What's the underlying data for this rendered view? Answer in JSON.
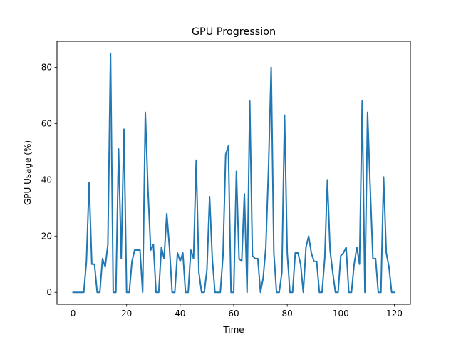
{
  "chart_data": {
    "type": "line",
    "title": "GPU Progression",
    "xlabel": "Time",
    "ylabel": "GPU Usage (%)",
    "xlim": [
      -6,
      126
    ],
    "ylim": [
      -4.25,
      89.25
    ],
    "xticks": [
      0,
      20,
      40,
      60,
      80,
      100,
      120
    ],
    "yticks": [
      0,
      20,
      40,
      60,
      80
    ],
    "grid": false,
    "line_color": "#1f77b4",
    "series": [
      {
        "x": [
          0,
          1,
          2,
          3,
          4,
          5,
          6,
          7,
          8,
          9,
          10,
          11,
          12,
          13,
          14,
          15,
          16,
          17,
          18,
          19,
          20,
          21,
          22,
          23,
          24,
          25,
          26,
          27,
          28,
          29,
          30,
          31,
          32,
          33,
          34,
          35,
          36,
          37,
          38,
          39,
          40,
          41,
          42,
          43,
          44,
          45,
          46,
          47,
          48,
          49,
          50,
          51,
          52,
          53,
          54,
          55,
          56,
          57,
          58,
          59,
          60,
          61,
          62,
          63,
          64,
          65,
          66,
          67,
          68,
          69,
          70,
          71,
          72,
          73,
          74,
          75,
          76,
          77,
          78,
          79,
          80,
          81,
          82,
          83,
          84,
          85,
          86,
          87,
          88,
          89,
          90,
          91,
          92,
          93,
          94,
          95,
          96,
          97,
          98,
          99,
          100,
          101,
          102,
          103,
          104,
          105,
          106,
          107,
          108,
          109,
          110,
          111,
          112,
          113,
          114,
          115,
          116,
          117,
          118,
          119,
          120
        ],
        "values": [
          0,
          0,
          0,
          0,
          0,
          11,
          39,
          10,
          10,
          0,
          0,
          12,
          9,
          17,
          85,
          0,
          0,
          51,
          12,
          58,
          0,
          0,
          11,
          15,
          15,
          15,
          0,
          64,
          36,
          15,
          17,
          0,
          0,
          16,
          12,
          28,
          16,
          0,
          0,
          14,
          11,
          14,
          0,
          0,
          15,
          12,
          47,
          7,
          0,
          0,
          8,
          34,
          12,
          0,
          0,
          0,
          13,
          49,
          52,
          0,
          0,
          43,
          12,
          11,
          35,
          0,
          68,
          13,
          12,
          12,
          0,
          5,
          16,
          44,
          80,
          14,
          0,
          0,
          7,
          63,
          14,
          0,
          0,
          14,
          14,
          10,
          0,
          16,
          20,
          14,
          11,
          11,
          0,
          0,
          12,
          40,
          15,
          7,
          0,
          0,
          13,
          14,
          16,
          0,
          0,
          10,
          16,
          10,
          68,
          0,
          64,
          37,
          12,
          12,
          0,
          0,
          41,
          14,
          9,
          0,
          0
        ]
      }
    ]
  }
}
